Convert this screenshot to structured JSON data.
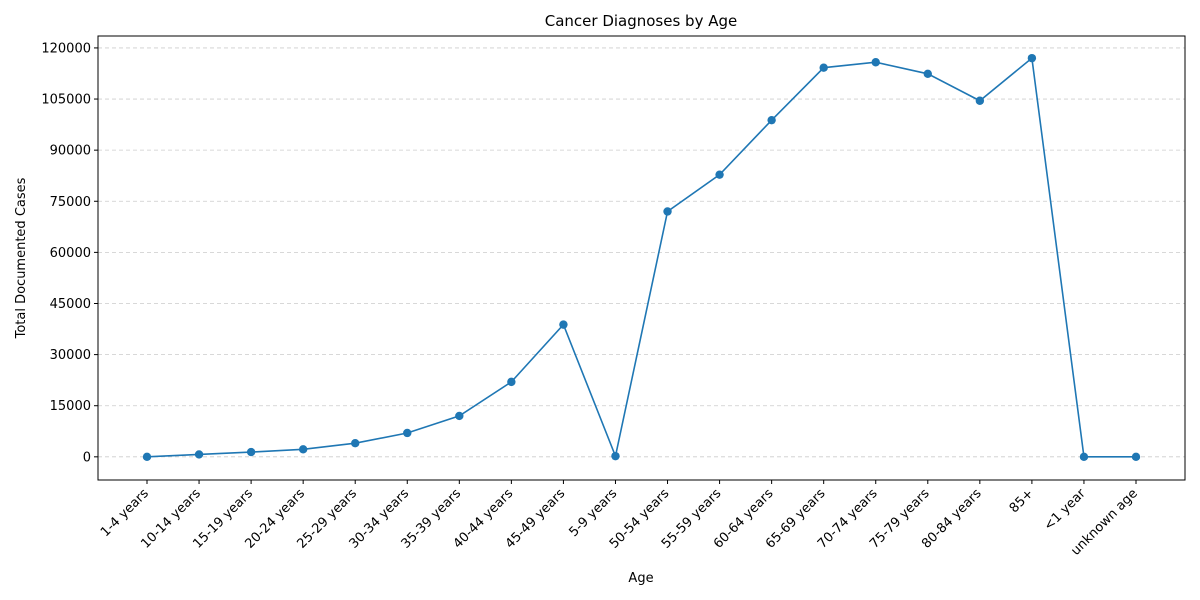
{
  "chart_data": {
    "type": "line",
    "title": "Cancer Diagnoses by Age",
    "xlabel": "Age",
    "ylabel": "Total Documented Cases",
    "categories": [
      "1-4 years",
      "10-14 years",
      "15-19 years",
      "20-24 years",
      "25-29 years",
      "30-34 years",
      "35-39 years",
      "40-44 years",
      "45-49 years",
      "5-9 years",
      "50-54 years",
      "55-59 years",
      "60-64 years",
      "65-69 years",
      "70-74 years",
      "75-79 years",
      "80-84 years",
      "85+",
      "<1 year",
      "unknown age"
    ],
    "series": [
      {
        "values": [
          0,
          700,
          1400,
          2200,
          4000,
          7000,
          12000,
          22000,
          38800,
          200,
          72000,
          82800,
          98800,
          114200,
          115800,
          112400,
          104500,
          117000,
          0,
          0
        ]
      }
    ],
    "yticks": [
      0,
      15000,
      30000,
      45000,
      60000,
      75000,
      90000,
      105000,
      120000
    ],
    "ylim": [
      -6800,
      123500
    ],
    "grid": "horizontal, dashed",
    "marker": "circle",
    "colors": {
      "series": "#1f77b4"
    }
  }
}
